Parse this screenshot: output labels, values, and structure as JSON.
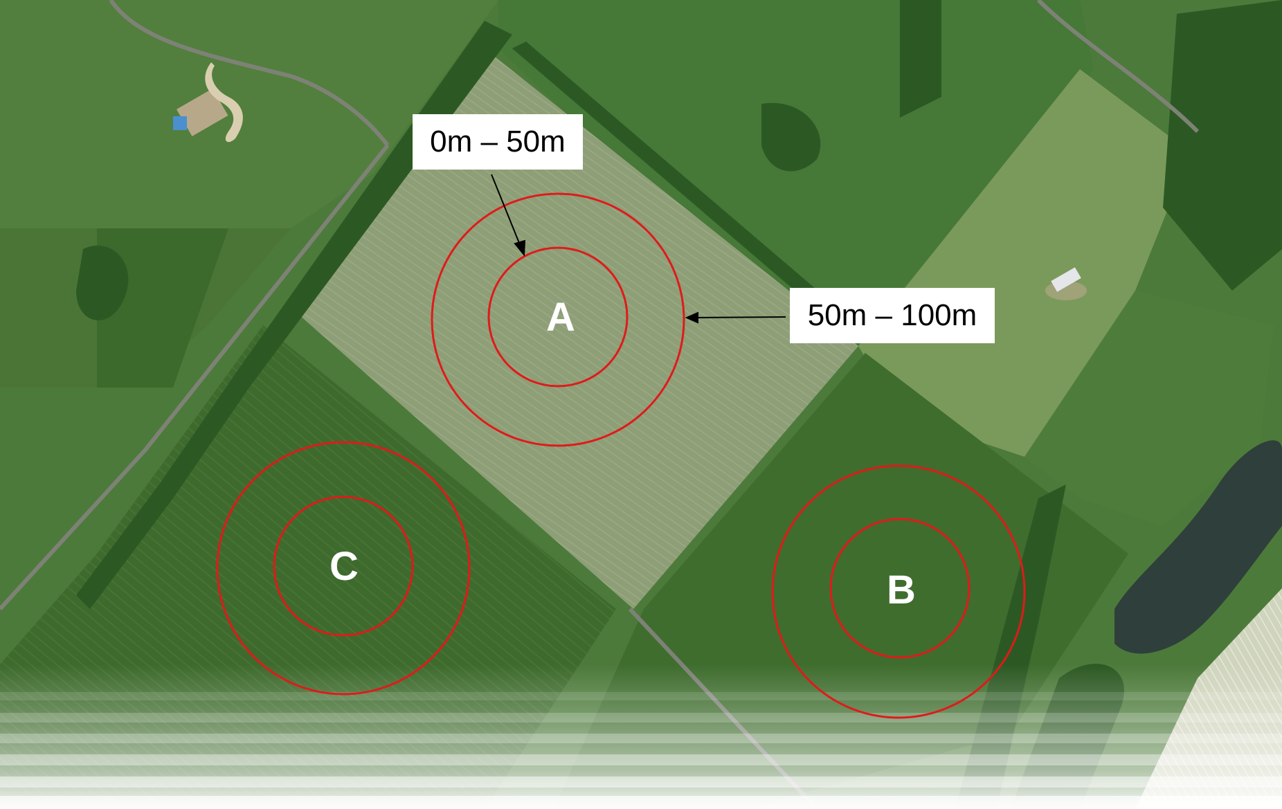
{
  "map": {
    "sites": [
      {
        "id": "A"
      },
      {
        "id": "B"
      },
      {
        "id": "C"
      }
    ],
    "legend": {
      "inner_ring": "0m – 50m",
      "outer_ring": "50m – 100m"
    },
    "colors": {
      "ring": "#e01a1a",
      "field_light": "#8e9f78",
      "field_dark": "#3f6a2e",
      "grass": "#4d7a3a",
      "tree": "#2d5a23",
      "road": "#7c8074",
      "water": "#2e3d3a"
    }
  }
}
